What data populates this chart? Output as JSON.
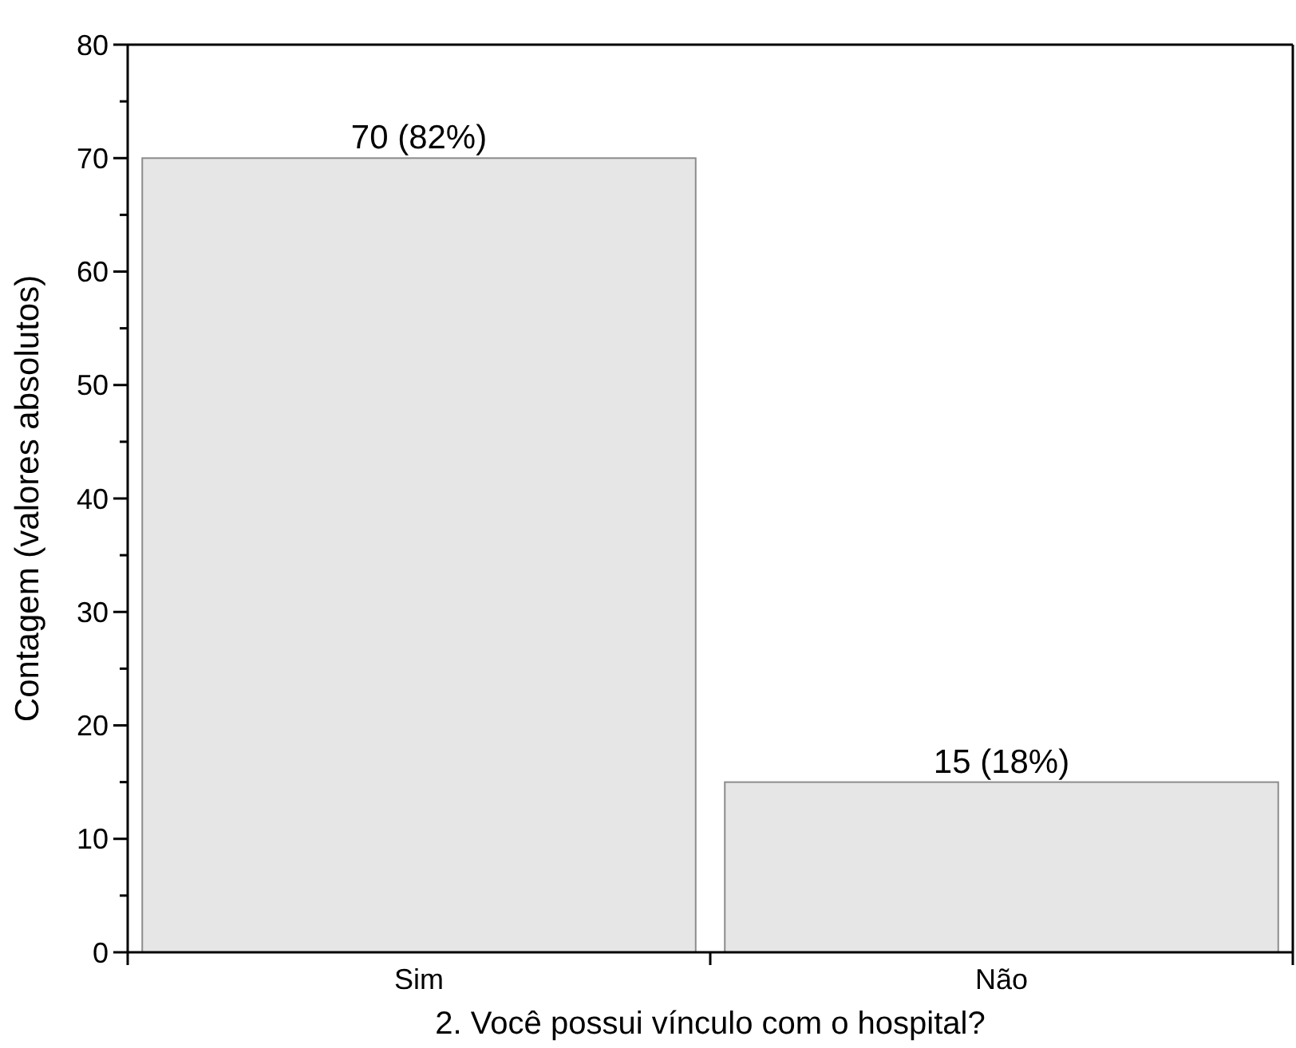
{
  "chart_data": {
    "type": "bar",
    "xlabel": "2. Você possui vínculo com o hospital?",
    "ylabel": "Contagem (valores absolutos)",
    "categories": [
      "Sim",
      "Não"
    ],
    "values": [
      70,
      15
    ],
    "value_labels": [
      "70 (82%)",
      "15 (18%)"
    ],
    "color": "#e6e6e6",
    "ylim": [
      0,
      80
    ],
    "yticks": [
      0,
      {
        "value": 5,
        "label": null
      },
      10,
      {
        "value": 15,
        "label": null
      },
      20,
      {
        "value": 25,
        "label": null
      },
      30,
      {
        "value": 35,
        "label": null
      },
      40,
      {
        "value": 45,
        "label": null
      },
      50,
      {
        "value": 55,
        "label": null
      },
      60,
      {
        "value": 65,
        "label": null
      },
      70,
      {
        "value": 75,
        "label": null
      },
      80
    ],
    "grid": false
  }
}
